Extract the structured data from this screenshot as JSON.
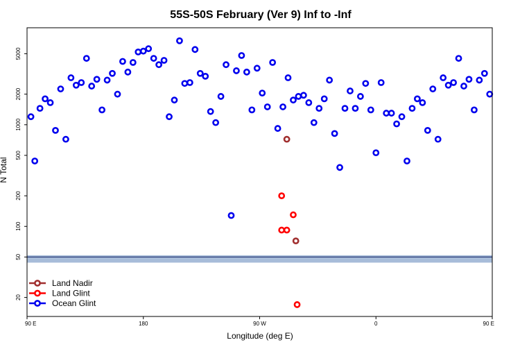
{
  "chart_data": {
    "type": "scatter",
    "title": "55S-50S February (Ver 9)   Inf to -Inf",
    "xlabel": "Longitude (deg E)",
    "ylabel": "N Total",
    "xlim": [
      90,
      450
    ],
    "ylim": [
      13,
      9000
    ],
    "yscale": "log",
    "x_ticks": [
      {
        "value": 90,
        "label": "90 E"
      },
      {
        "value": 180,
        "label": "180"
      },
      {
        "value": 270,
        "label": "90 W"
      },
      {
        "value": 360,
        "label": "0"
      },
      {
        "value": 450,
        "label": "90 E"
      }
    ],
    "y_ticks": [
      {
        "value": 20,
        "label": "20"
      },
      {
        "value": 50,
        "label": "50"
      },
      {
        "value": 100,
        "label": "100"
      },
      {
        "value": 200,
        "label": "200"
      },
      {
        "value": 500,
        "label": "500"
      },
      {
        "value": 1000,
        "label": "1000"
      },
      {
        "value": 2000,
        "label": "2000"
      },
      {
        "value": 5000,
        "label": "5000"
      }
    ],
    "band": {
      "ymin": 44,
      "ymax": 52,
      "color": "#a7bcd9"
    },
    "legend_position": "bottom-left",
    "series": [
      {
        "name": "Land Nadir",
        "color": "#a12f2f",
        "points": [
          [
            291,
            720
          ],
          [
            298,
            72
          ]
        ]
      },
      {
        "name": "Land Glint",
        "color": "#ff0000",
        "points": [
          [
            287,
            200
          ],
          [
            296,
            130
          ],
          [
            287,
            92
          ],
          [
            291,
            92
          ],
          [
            299,
            17
          ]
        ]
      },
      {
        "name": "Ocean Glint",
        "color": "#0000ee",
        "points": [
          [
            93,
            1200
          ],
          [
            96,
            440
          ],
          [
            100,
            1450
          ],
          [
            104,
            1800
          ],
          [
            108,
            1650
          ],
          [
            112,
            880
          ],
          [
            116,
            2250
          ],
          [
            120,
            720
          ],
          [
            124,
            2900
          ],
          [
            128,
            2450
          ],
          [
            132,
            2600
          ],
          [
            136,
            4500
          ],
          [
            140,
            2400
          ],
          [
            144,
            2800
          ],
          [
            148,
            1400
          ],
          [
            152,
            2750
          ],
          [
            156,
            3200
          ],
          [
            160,
            2000
          ],
          [
            164,
            4200
          ],
          [
            168,
            3300
          ],
          [
            172,
            4100
          ],
          [
            176,
            5200
          ],
          [
            180,
            5300
          ],
          [
            184,
            5600
          ],
          [
            188,
            4500
          ],
          [
            192,
            3900
          ],
          [
            196,
            4300
          ],
          [
            200,
            1200
          ],
          [
            204,
            1750
          ],
          [
            208,
            6700
          ],
          [
            212,
            2550
          ],
          [
            216,
            2600
          ],
          [
            220,
            5500
          ],
          [
            224,
            3200
          ],
          [
            228,
            3000
          ],
          [
            232,
            1350
          ],
          [
            236,
            1050
          ],
          [
            240,
            1900
          ],
          [
            244,
            3900
          ],
          [
            248,
            128
          ],
          [
            252,
            3400
          ],
          [
            256,
            4800
          ],
          [
            260,
            3300
          ],
          [
            264,
            1400
          ],
          [
            268,
            3600
          ],
          [
            272,
            2050
          ],
          [
            276,
            1500
          ],
          [
            280,
            4100
          ],
          [
            284,
            920
          ],
          [
            288,
            1500
          ],
          [
            292,
            2900
          ],
          [
            296,
            1750
          ],
          [
            300,
            1900
          ],
          [
            304,
            1950
          ],
          [
            308,
            1650
          ],
          [
            312,
            1050
          ],
          [
            316,
            1450
          ],
          [
            320,
            1800
          ],
          [
            324,
            2750
          ],
          [
            328,
            820
          ],
          [
            332,
            380
          ],
          [
            336,
            1450
          ],
          [
            340,
            2150
          ],
          [
            344,
            1450
          ],
          [
            348,
            1900
          ],
          [
            352,
            2550
          ],
          [
            356,
            1400
          ],
          [
            360,
            530
          ],
          [
            364,
            2600
          ],
          [
            368,
            1300
          ],
          [
            372,
            1300
          ],
          [
            376,
            1020
          ],
          [
            380,
            1200
          ],
          [
            384,
            440
          ],
          [
            388,
            1450
          ],
          [
            392,
            1800
          ],
          [
            396,
            1650
          ],
          [
            400,
            880
          ],
          [
            404,
            2250
          ],
          [
            408,
            720
          ],
          [
            412,
            2900
          ],
          [
            416,
            2450
          ],
          [
            420,
            2600
          ],
          [
            424,
            4500
          ],
          [
            428,
            2400
          ],
          [
            432,
            2800
          ],
          [
            436,
            1400
          ],
          [
            440,
            2750
          ],
          [
            444,
            3200
          ],
          [
            448,
            2000
          ]
        ]
      }
    ]
  }
}
